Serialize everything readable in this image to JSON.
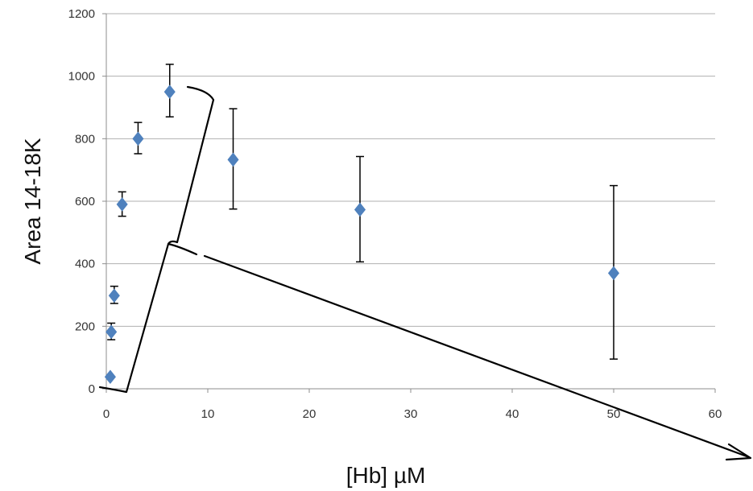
{
  "chart_data": {
    "type": "scatter",
    "title": "",
    "xlabel": "[Hb] µM",
    "ylabel": "Area 14-18K",
    "xlim": [
      0,
      60
    ],
    "ylim": [
      0,
      1200
    ],
    "x_ticks": [
      0,
      10,
      20,
      30,
      40,
      50,
      60
    ],
    "y_ticks": [
      0,
      200,
      400,
      600,
      800,
      1000,
      1200
    ],
    "grid": "horizontal",
    "legend": "none",
    "marker": "diamond",
    "series": [
      {
        "color": "#4f81bd",
        "points": [
          {
            "x": 0.39,
            "y": 38,
            "err_low": 0,
            "err_high": 0
          },
          {
            "x": 0.49,
            "y": 182,
            "err_low": 25,
            "err_high": 28
          },
          {
            "x": 0.78,
            "y": 298,
            "err_low": 25,
            "err_high": 30
          },
          {
            "x": 1.56,
            "y": 590,
            "err_low": 38,
            "err_high": 40
          },
          {
            "x": 3.13,
            "y": 800,
            "err_low": 48,
            "err_high": 52
          },
          {
            "x": 6.25,
            "y": 950,
            "err_low": 80,
            "err_high": 88
          },
          {
            "x": 12.5,
            "y": 733,
            "err_low": 158,
            "err_high": 163
          },
          {
            "x": 25,
            "y": 573,
            "err_low": 167,
            "err_high": 170
          },
          {
            "x": 50,
            "y": 370,
            "err_low": 275,
            "err_high": 280
          }
        ]
      }
    ],
    "colors": {
      "marker": "#4f81bd",
      "grid": "#b0b0b0",
      "axis": "#8c8c8c",
      "error_bar": "#000000",
      "annotation": "#000000"
    }
  }
}
